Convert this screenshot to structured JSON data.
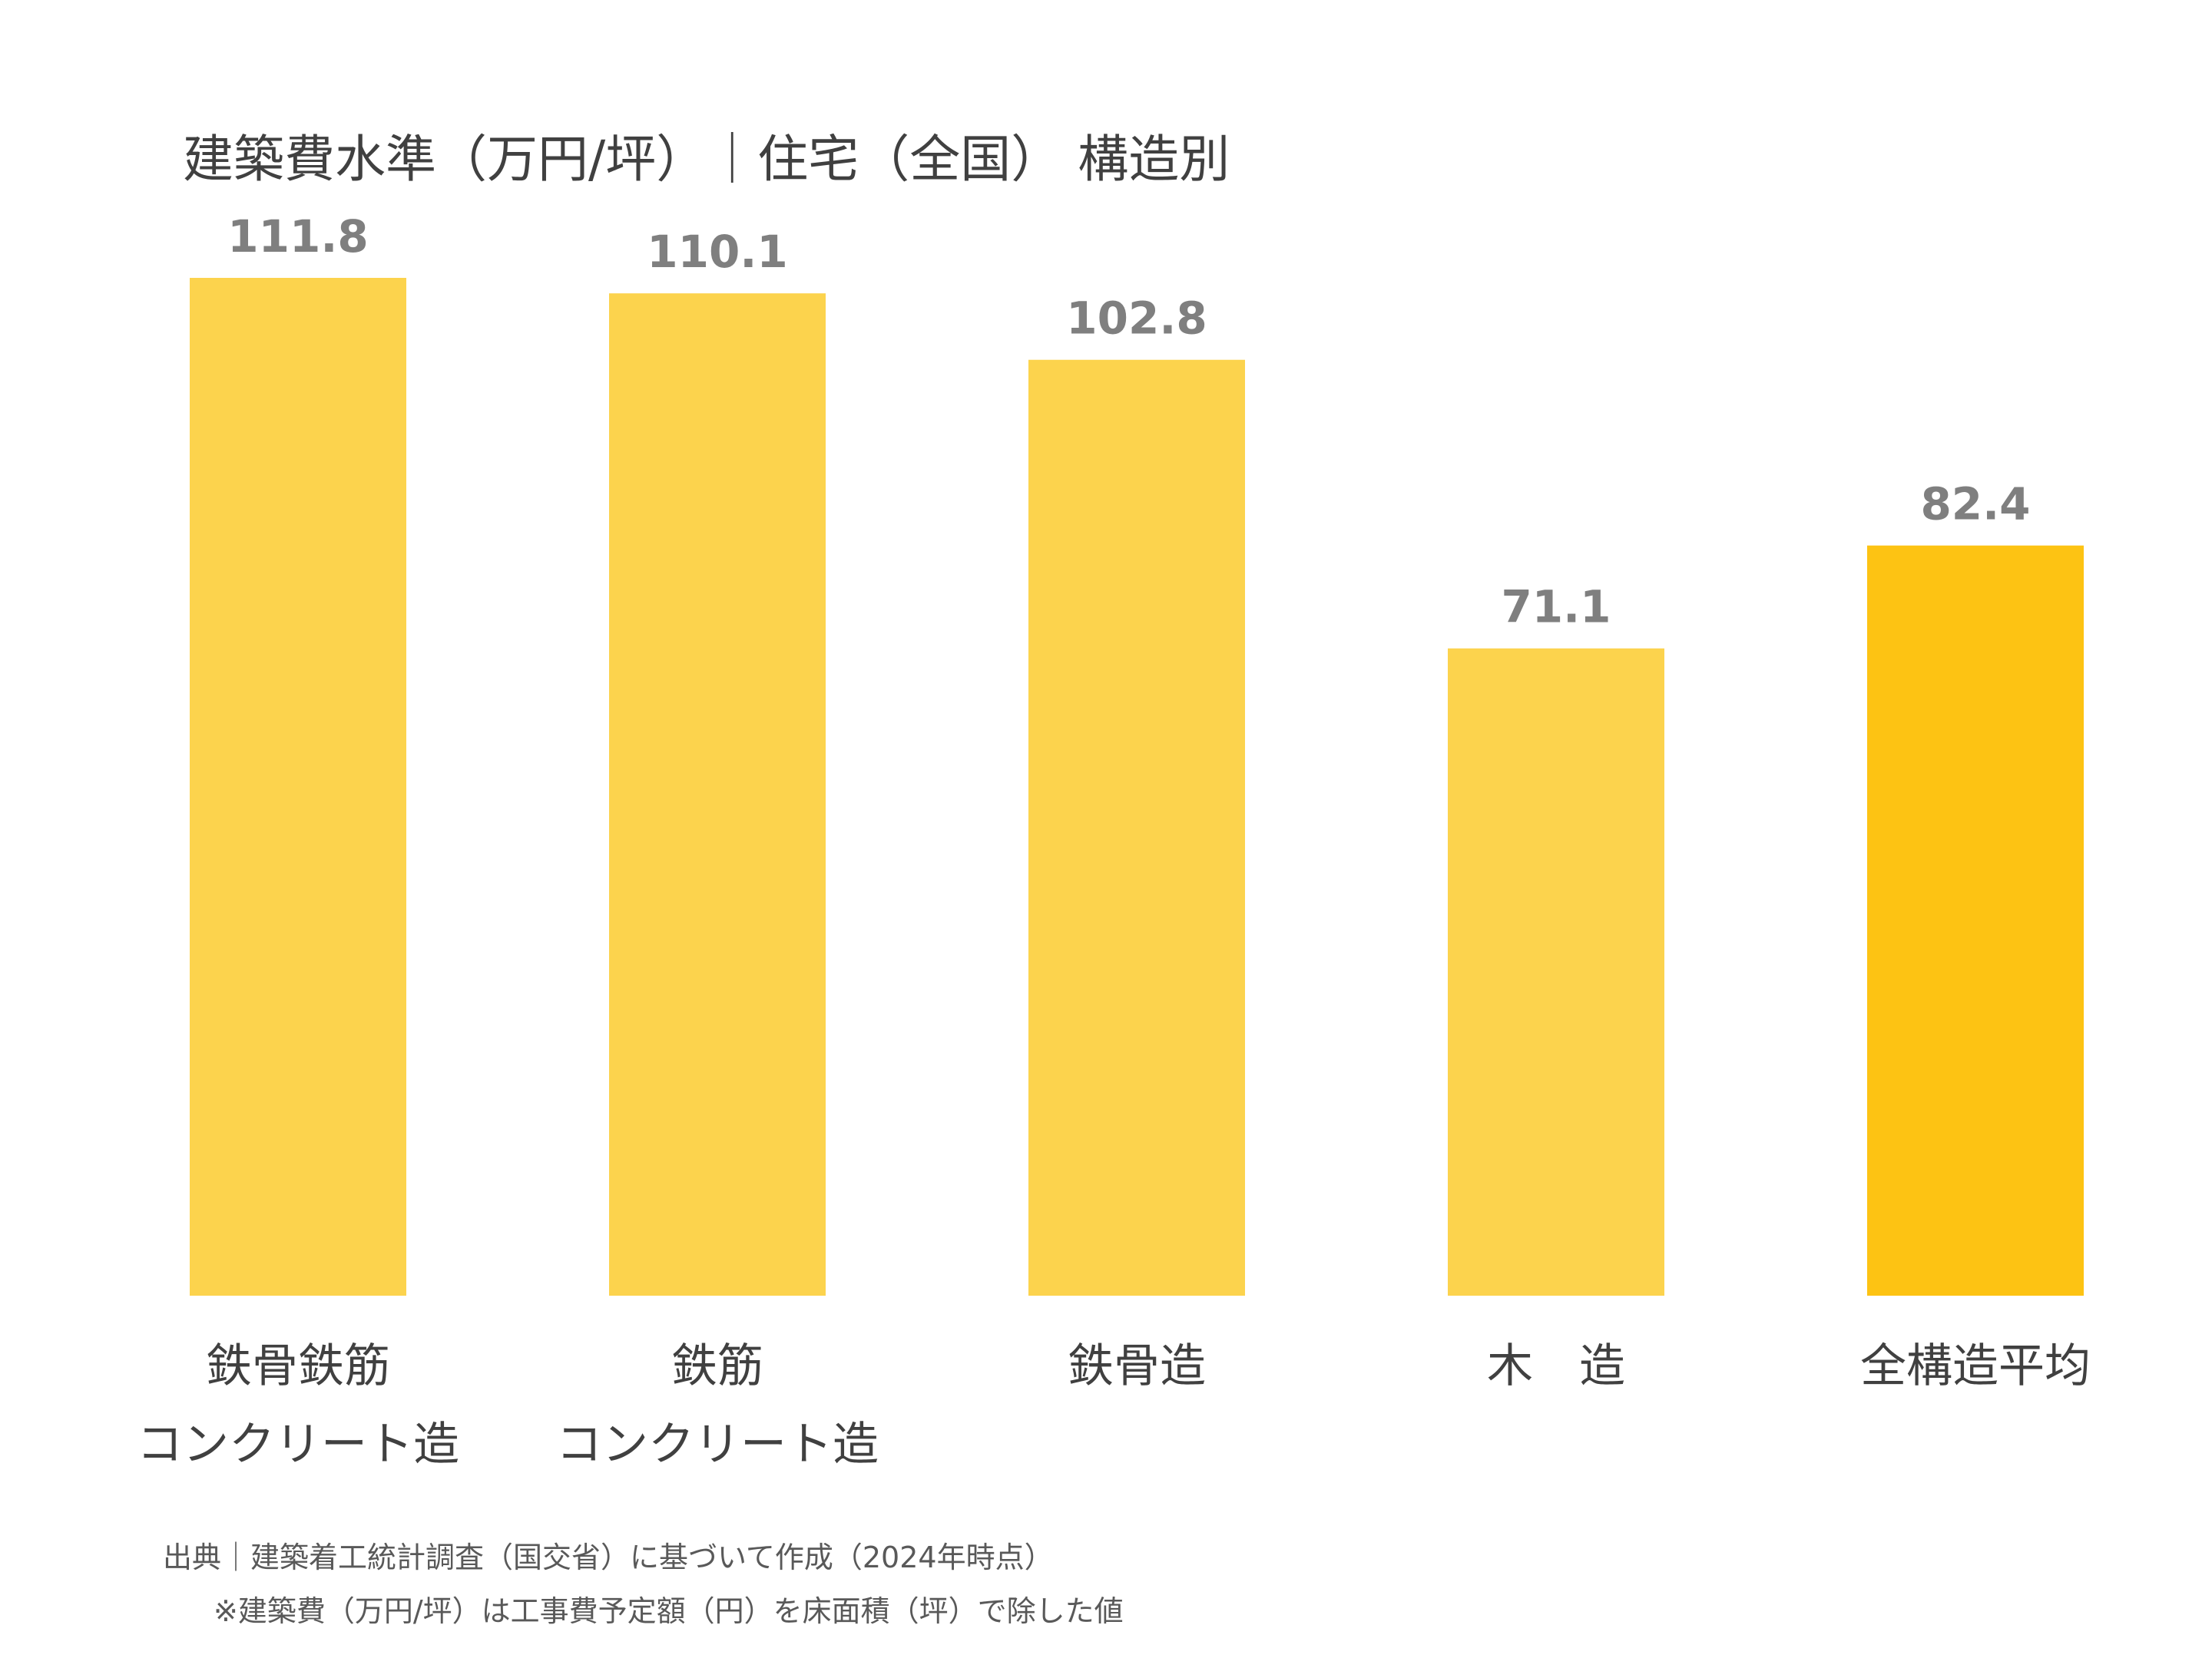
{
  "chart_data": {
    "type": "bar",
    "title": "建築費水準（万円/坪）｜住宅（全国） 構造別",
    "categories": [
      [
        "鉄骨鉄筋",
        "コンクリート造"
      ],
      [
        "鉄筋",
        "コンクリート造"
      ],
      [
        "鉄骨造"
      ],
      [
        "木　造"
      ],
      [
        "全構造平均"
      ]
    ],
    "values": [
      111.8,
      110.1,
      102.8,
      71.1,
      82.4
    ],
    "value_labels": [
      "111.8",
      "110.1",
      "102.8",
      "71.1",
      "82.4"
    ],
    "ylim": [
      0,
      111.8
    ],
    "xlabel": "",
    "ylabel": "",
    "grid": false,
    "legend": "none",
    "colors": {
      "bar": "#FCD34D",
      "highlight_bar": "#FDC313",
      "value_label": "#7F7F7F",
      "text": "#404040"
    },
    "highlight_index": 4
  },
  "notes": {
    "source": "出典｜建築着工統計調査（国交省）に基づいて作成（2024年時点）",
    "remark": "※建築費（万円/坪）は工事費予定額（円）を床面積（坪）で除した値"
  }
}
